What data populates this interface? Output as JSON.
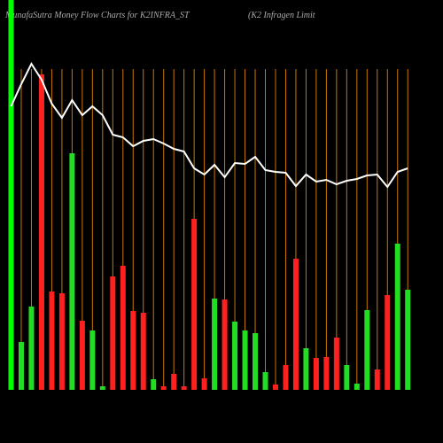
{
  "chart_data": {
    "type": "bar",
    "title": "MunafaSutra  Money Flow  Charts for K2INFRA_ST",
    "subtitle": "(K2  Infragen  Limit",
    "categories": [
      null,
      null,
      null,
      null,
      null,
      null,
      null,
      null,
      null,
      null,
      null,
      null,
      null,
      null,
      null,
      null,
      null,
      null,
      null,
      null,
      null,
      null,
      null,
      null,
      null,
      null,
      null,
      null,
      null,
      null,
      null,
      null,
      null,
      null,
      null,
      null,
      null,
      null,
      null,
      null
    ],
    "values": [
      440,
      54,
      94,
      356,
      111,
      109,
      267,
      78,
      67,
      4,
      128,
      140,
      89,
      87,
      12,
      4,
      18,
      4,
      193,
      13,
      103,
      102,
      77,
      67,
      64,
      20,
      6,
      28,
      148,
      47,
      36,
      37,
      59,
      28,
      7,
      90,
      23,
      107,
      165,
      113
    ],
    "colors": [
      "#00ff00",
      "#22dd22",
      "#22dd22",
      "#ff2020",
      "#ff2020",
      "#ff2020",
      "#22dd22",
      "#ff2020",
      "#22dd22",
      "#22dd22",
      "#ff2020",
      "#ff2020",
      "#ff2020",
      "#ff2020",
      "#22dd22",
      "#ff2020",
      "#ff2020",
      "#ff2020",
      "#ff2020",
      "#ff2020",
      "#22dd22",
      "#ff2020",
      "#22dd22",
      "#22dd22",
      "#22dd22",
      "#22dd22",
      "#ff2020",
      "#ff2020",
      "#ff2020",
      "#22dd22",
      "#ff2020",
      "#ff2020",
      "#ff2020",
      "#22dd22",
      "#22dd22",
      "#22dd22",
      "#ff2020",
      "#ff2020",
      "#22dd22",
      "#22dd22"
    ],
    "ylim": [
      0,
      440
    ],
    "line": {
      "color": "#ffffff",
      "axis": "y2",
      "values": [
        320,
        345,
        368,
        350,
        323,
        307,
        327,
        310,
        320,
        310,
        288,
        285,
        275,
        281,
        283,
        278,
        272,
        269,
        250,
        243,
        254,
        240,
        256,
        255,
        263,
        248,
        246,
        245,
        230,
        243,
        235,
        237,
        232,
        236,
        238,
        242,
        243,
        229,
        246,
        250
      ]
    },
    "y2lim": [
      0,
      440
    ],
    "grid_color": "#c87800"
  }
}
